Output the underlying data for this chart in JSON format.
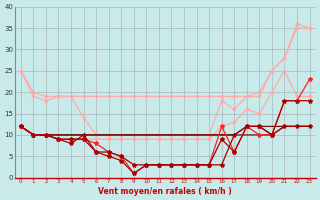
{
  "x": [
    0,
    1,
    2,
    3,
    4,
    5,
    6,
    7,
    8,
    9,
    10,
    11,
    12,
    13,
    14,
    15,
    16,
    17,
    18,
    19,
    20,
    21,
    22,
    23
  ],
  "line_pink1": [
    25,
    20,
    19,
    19,
    19,
    19,
    19,
    19,
    19,
    19,
    19,
    19,
    19,
    19,
    19,
    19,
    19,
    19,
    19,
    19,
    25,
    28,
    35,
    35
  ],
  "line_pink2": [
    25,
    19,
    18,
    19,
    19,
    14,
    10,
    10,
    10,
    10,
    10,
    10,
    10,
    10,
    10,
    10,
    18,
    16,
    19,
    20,
    25,
    28,
    36,
    35
  ],
  "line_pink3": [
    12,
    10,
    10,
    9,
    9,
    9,
    9,
    9,
    9,
    9,
    9,
    9,
    9,
    9,
    9,
    9,
    12,
    13,
    16,
    15,
    20,
    25,
    19,
    19
  ],
  "line_red1": [
    12,
    10,
    10,
    9,
    9,
    9,
    8,
    6,
    5,
    1,
    3,
    3,
    3,
    3,
    3,
    3,
    12,
    6,
    12,
    10,
    10,
    18,
    18,
    23
  ],
  "line_red2": [
    12,
    10,
    10,
    9,
    9,
    9,
    6,
    6,
    5,
    3,
    3,
    3,
    3,
    3,
    3,
    3,
    9,
    6,
    12,
    12,
    10,
    18,
    18,
    18
  ],
  "line_dark1": [
    12,
    10,
    10,
    10,
    10,
    10,
    10,
    10,
    10,
    10,
    10,
    10,
    10,
    10,
    10,
    10,
    10,
    10,
    12,
    12,
    12,
    12,
    12,
    12
  ],
  "line_dark2": [
    12,
    10,
    10,
    10,
    10,
    10,
    10,
    10,
    10,
    10,
    10,
    10,
    10,
    10,
    10,
    10,
    10,
    10,
    10,
    10,
    10,
    12,
    12,
    12
  ],
  "line_bot": [
    12,
    10,
    10,
    9,
    8,
    10,
    6,
    5,
    4,
    1,
    3,
    3,
    3,
    3,
    3,
    3,
    3,
    10,
    12,
    12,
    10,
    12,
    12,
    12
  ],
  "bg_color": "#c8eaeb",
  "grid_color": "#999999",
  "pink_color": "#ffaaaa",
  "red_color": "#ff2222",
  "dark_color": "#aa0000",
  "darkest_color": "#660000",
  "xlabel": "Vent moyen/en rafales ( km/h )",
  "xlim": [
    0,
    23
  ],
  "ylim": [
    0,
    40
  ],
  "yticks": [
    0,
    5,
    10,
    15,
    20,
    25,
    30,
    35,
    40
  ]
}
